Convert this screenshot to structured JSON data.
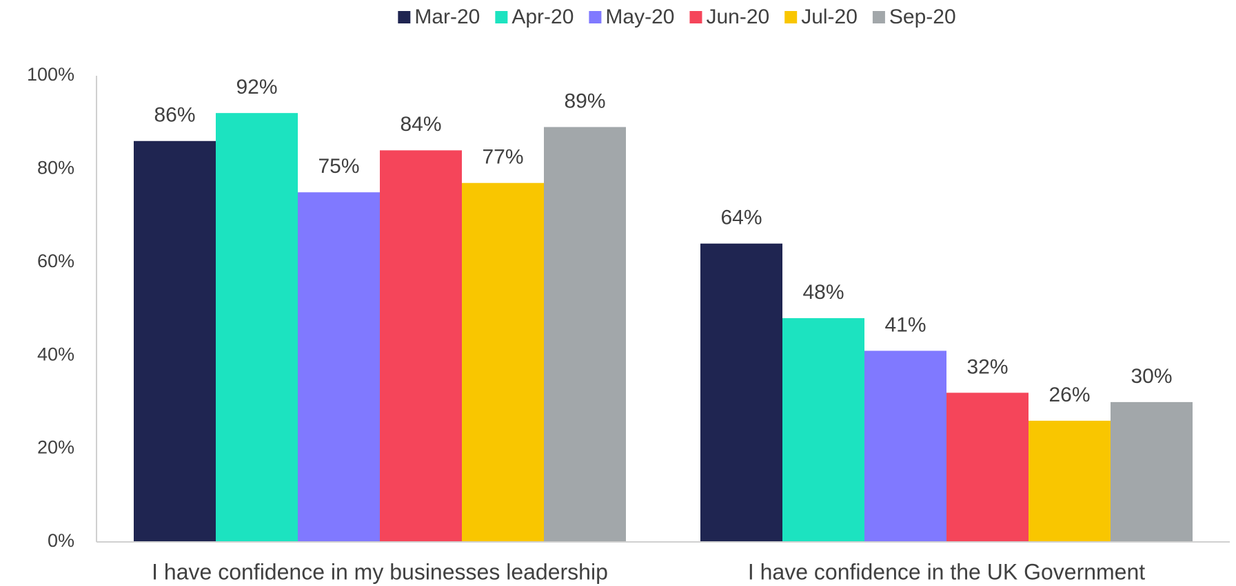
{
  "chart_data": {
    "type": "bar",
    "categories": [
      "I have confidence in my businesses leadership",
      "I have confidence in the UK Government"
    ],
    "series": [
      {
        "name": "Mar-20",
        "color": "#1f2551",
        "values": [
          86,
          64
        ],
        "value_labels": [
          "86%",
          "64%"
        ]
      },
      {
        "name": "Apr-20",
        "color": "#1ce3c0",
        "values": [
          92,
          48
        ],
        "value_labels": [
          "92%",
          "48%"
        ]
      },
      {
        "name": "May-20",
        "color": "#8079ff",
        "values": [
          75,
          41
        ],
        "value_labels": [
          "75%",
          "41%"
        ]
      },
      {
        "name": "Jun-20",
        "color": "#f5455a",
        "values": [
          84,
          32
        ],
        "value_labels": [
          "84%",
          "32%"
        ]
      },
      {
        "name": "Jul-20",
        "color": "#f9c600",
        "values": [
          77,
          26
        ],
        "value_labels": [
          "77%",
          "26%"
        ]
      },
      {
        "name": "Sep-20",
        "color": "#a2a7aa",
        "values": [
          89,
          30
        ],
        "value_labels": [
          "89%",
          "30%"
        ]
      }
    ],
    "ylim": [
      0,
      100
    ],
    "yticks": [
      {
        "value": 0,
        "label": "0%"
      },
      {
        "value": 20,
        "label": "20%"
      },
      {
        "value": 40,
        "label": "40%"
      },
      {
        "value": 60,
        "label": "60%"
      },
      {
        "value": 80,
        "label": "80%"
      },
      {
        "value": 100,
        "label": "100%"
      }
    ],
    "grid": false,
    "legend": "top"
  }
}
